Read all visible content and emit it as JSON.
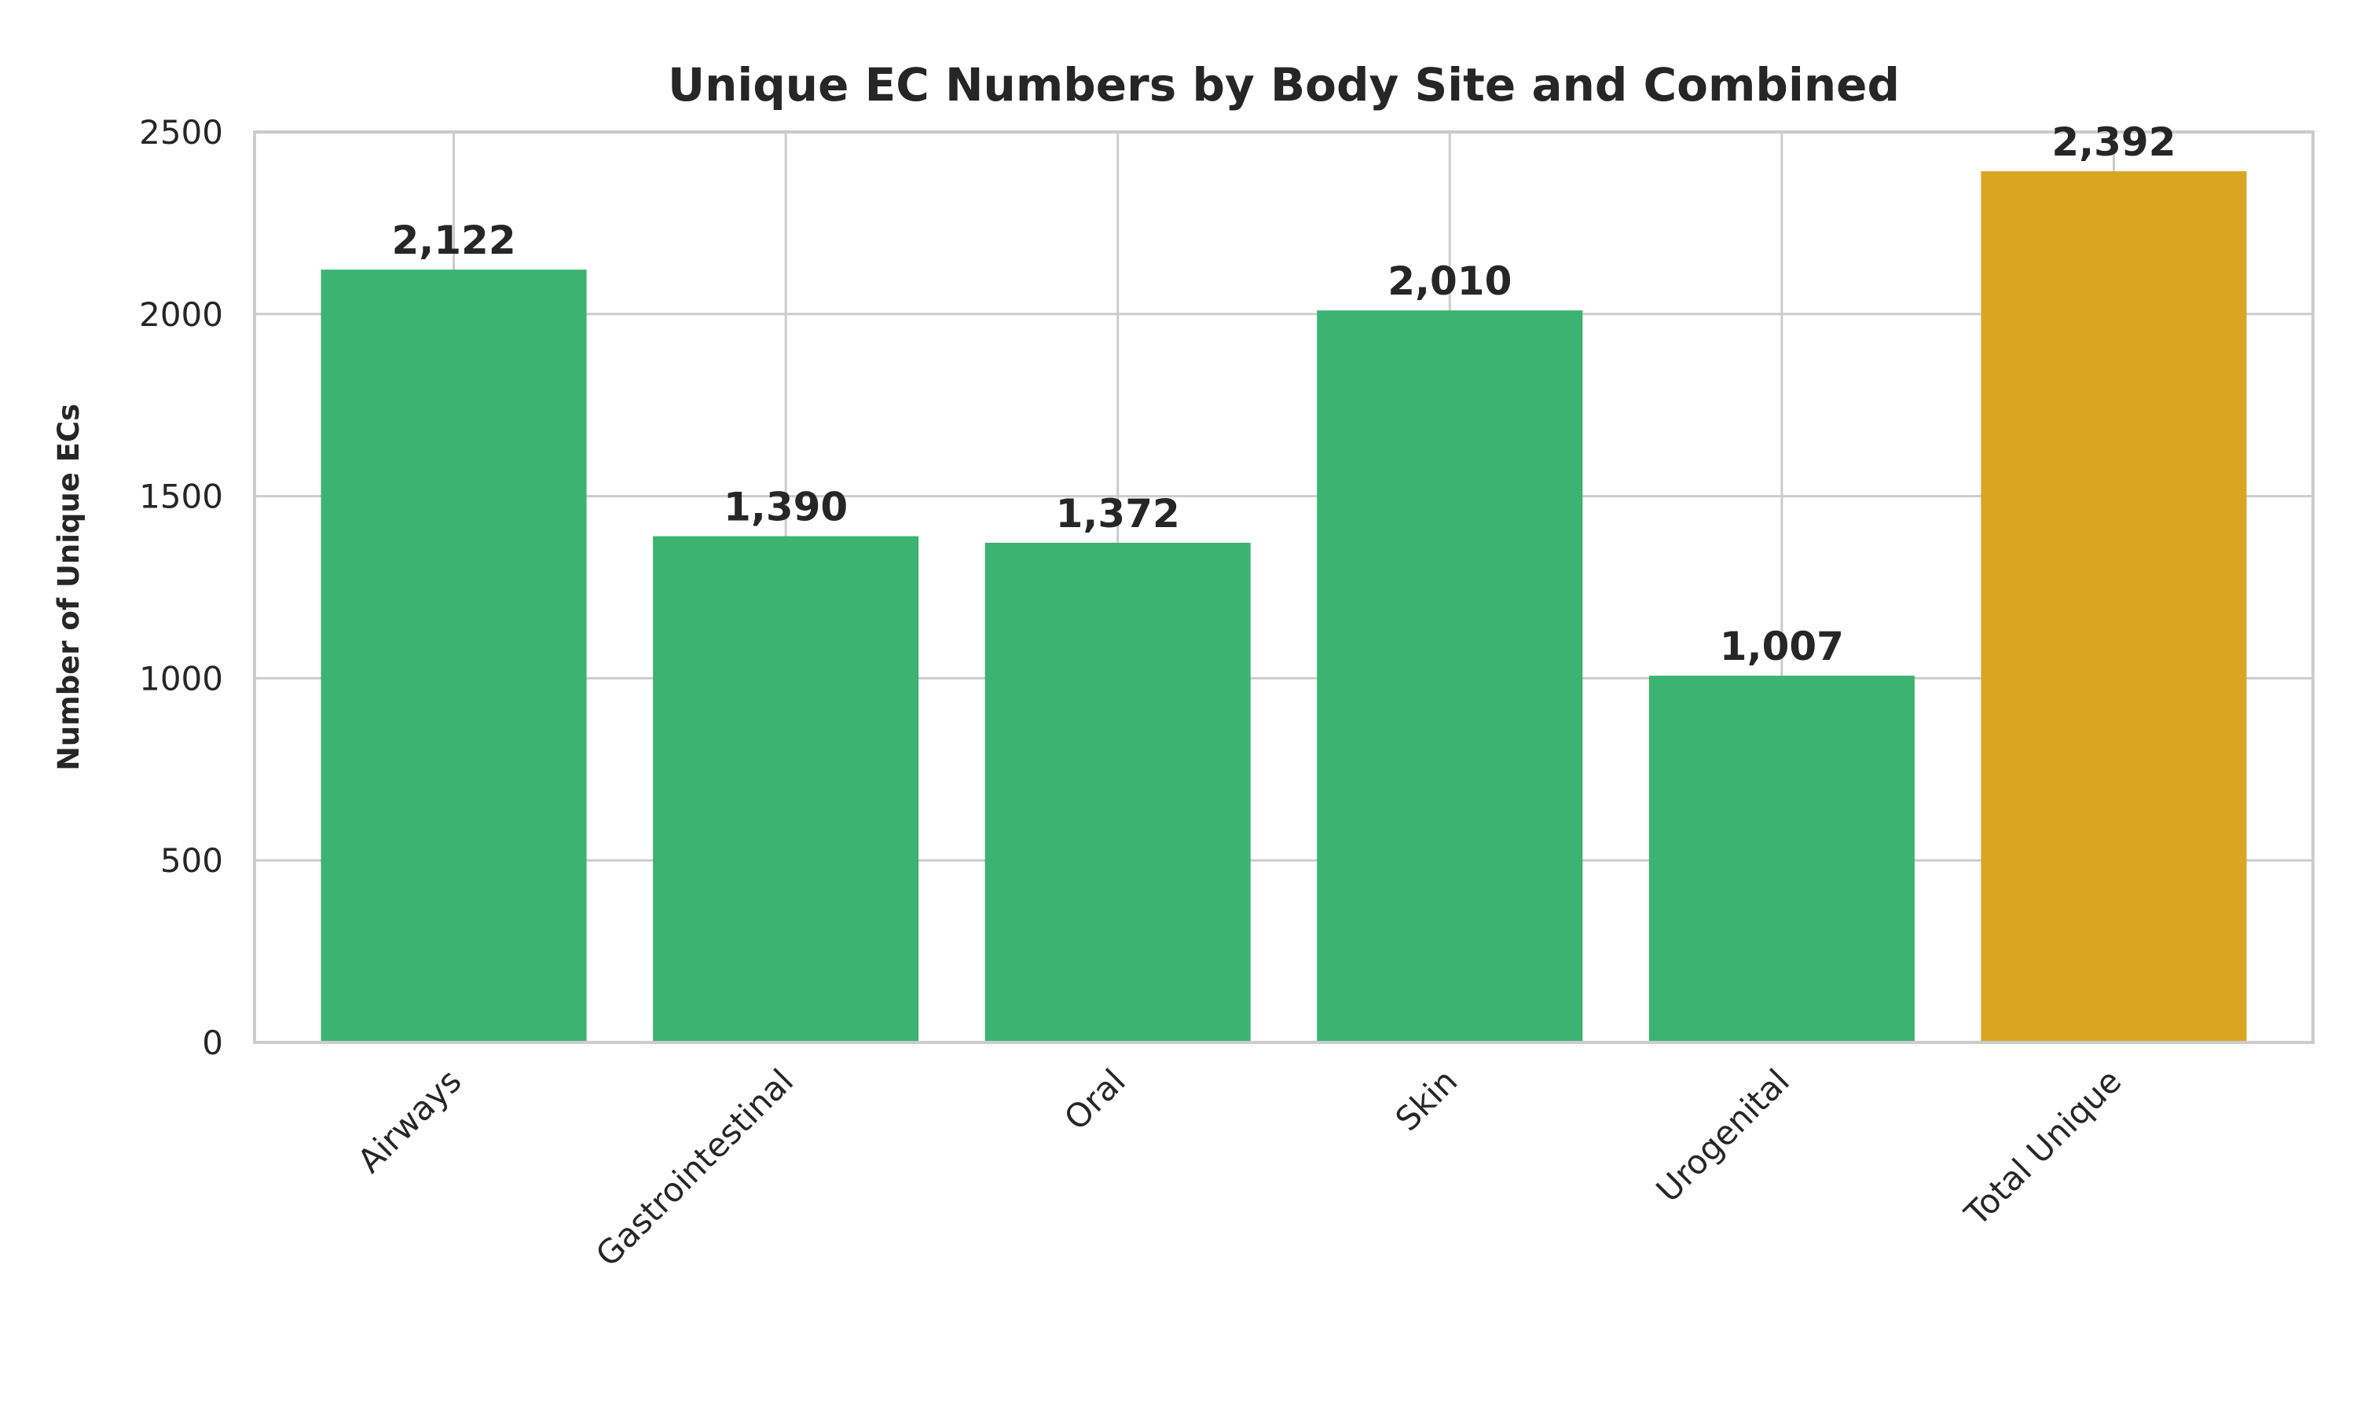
{
  "chart_data": {
    "type": "bar",
    "title": "Unique EC Numbers by Body Site and Combined",
    "xlabel": "",
    "ylabel": "Number of Unique ECs",
    "categories": [
      "Airways",
      "Gastrointestinal",
      "Oral",
      "Skin",
      "Urogenital",
      "Total Unique"
    ],
    "values": [
      2122,
      1390,
      1372,
      2010,
      1007,
      2392
    ],
    "value_labels": [
      "2,122",
      "1,390",
      "1,372",
      "2,010",
      "1,007",
      "2,392"
    ],
    "bar_colors": [
      "#3cb371",
      "#3cb371",
      "#3cb371",
      "#3cb371",
      "#3cb371",
      "#daa520"
    ],
    "ylim": [
      0,
      2500
    ],
    "yticks": [
      0,
      500,
      1000,
      1500,
      2000,
      2500
    ],
    "ytick_labels": [
      "0",
      "500",
      "1000",
      "1500",
      "2000",
      "2500"
    ],
    "grid": true,
    "colors": {
      "grid": "#cccccc",
      "frame": "#cccccc",
      "text": "#262626"
    }
  }
}
